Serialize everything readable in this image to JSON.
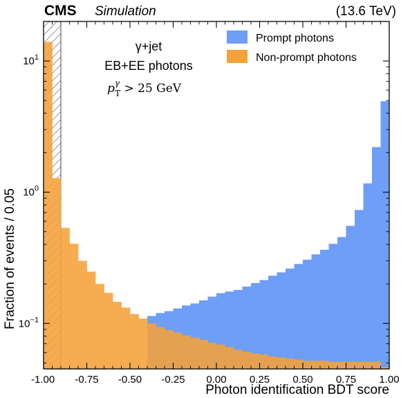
{
  "chart_data": {
    "type": "bar",
    "histogram": true,
    "xlabel": "Photon identification BDT score",
    "ylabel": "Fraction of events / 0.05",
    "xlim": [
      -1.0,
      1.0
    ],
    "ylim": [
      0.045,
      20
    ],
    "yscale": "log",
    "bin_width": 0.05,
    "bin_edges_start": -1.0,
    "xticks": [
      "-1.00",
      "-0.75",
      "-0.50",
      "-0.25",
      "0.00",
      "0.25",
      "0.50",
      "0.75",
      "1.00"
    ],
    "xtick_values": [
      -1.0,
      -0.75,
      -0.5,
      -0.25,
      0.0,
      0.25,
      0.5,
      0.75,
      1.0
    ],
    "yticks": [
      {
        "value": 0.1,
        "base": "10",
        "exp": "−1"
      },
      {
        "value": 1,
        "base": "10",
        "exp": "0"
      },
      {
        "value": 10,
        "base": "10",
        "exp": "1"
      }
    ],
    "hatched_region": [
      -1.0,
      -0.9
    ],
    "legend_position": "top-right",
    "series": [
      {
        "name": "Prompt photons",
        "color": "#6e9ef5",
        "values": [
          0.046,
          0.046,
          0.046,
          0.046,
          0.046,
          0.046,
          0.046,
          0.046,
          0.046,
          0.046,
          0.046,
          0.046,
          0.114,
          0.12,
          0.124,
          0.13,
          0.137,
          0.142,
          0.15,
          0.16,
          0.17,
          0.175,
          0.18,
          0.191,
          0.203,
          0.214,
          0.231,
          0.245,
          0.262,
          0.284,
          0.306,
          0.336,
          0.364,
          0.404,
          0.455,
          0.554,
          0.732,
          1.167,
          2.206,
          4.939
        ]
      },
      {
        "name": "Non-prompt photons",
        "color": "#f5a23a",
        "values": [
          14.0,
          1.28,
          0.535,
          0.405,
          0.3,
          0.248,
          0.2,
          0.171,
          0.146,
          0.132,
          0.118,
          0.109,
          0.1,
          0.094,
          0.089,
          0.085,
          0.081,
          0.078,
          0.075,
          0.071,
          0.069,
          0.066,
          0.063,
          0.061,
          0.059,
          0.058,
          0.056,
          0.055,
          0.054,
          0.053,
          0.052,
          0.052,
          0.052,
          0.051,
          0.051,
          0.051,
          0.051,
          0.051,
          0.051,
          0.0465
        ]
      }
    ]
  },
  "header": {
    "cms_label": "CMS",
    "extra_label": "Simulation",
    "energy_label": "(13.6 TeV)"
  },
  "annotations": {
    "process": "γ+jet",
    "category": "EB+EE photons",
    "cut_prefix": "p",
    "cut_sub": "T",
    "cut_sup": "γ",
    "cut_rest": " > 25 GeV"
  }
}
